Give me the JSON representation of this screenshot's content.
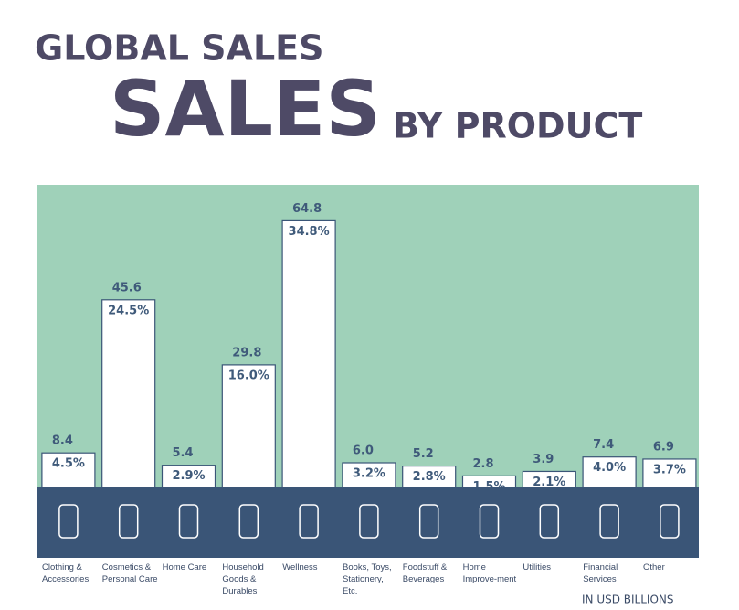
{
  "chart_data": {
    "type": "bar",
    "title": "GLOBAL SALES",
    "subtitle_big": "SALES",
    "subtitle_small": "BY PRODUCT",
    "unit_note": "IN USD BILLIONS",
    "categories": [
      "Clothing & Accessories",
      "Cosmetics & Personal Care",
      "Home Care",
      "Household Goods & Durables",
      "Wellness",
      "Books, Toys, Stationery, Etc.",
      "Foodstuff & Beverages",
      "Home Improve-ment",
      "Utilities",
      "Financial Services",
      "Other"
    ],
    "values": [
      8.4,
      45.6,
      5.4,
      29.8,
      64.8,
      6.0,
      5.2,
      2.8,
      3.9,
      7.4,
      6.9
    ],
    "value_labels": [
      "8.4",
      "45.6",
      "5.4",
      "29.8",
      "64.8",
      "6.0",
      "5.2",
      "2.8",
      "3.9",
      "7.4",
      "6.9"
    ],
    "share_labels": [
      "4.5%",
      "24.5%",
      "2.9%",
      "16.0%",
      "34.8%",
      "3.2%",
      "2.8%",
      "1.5%",
      "2.1%",
      "4.0%",
      "3.7%"
    ],
    "color": "#ffffff"
  }
}
